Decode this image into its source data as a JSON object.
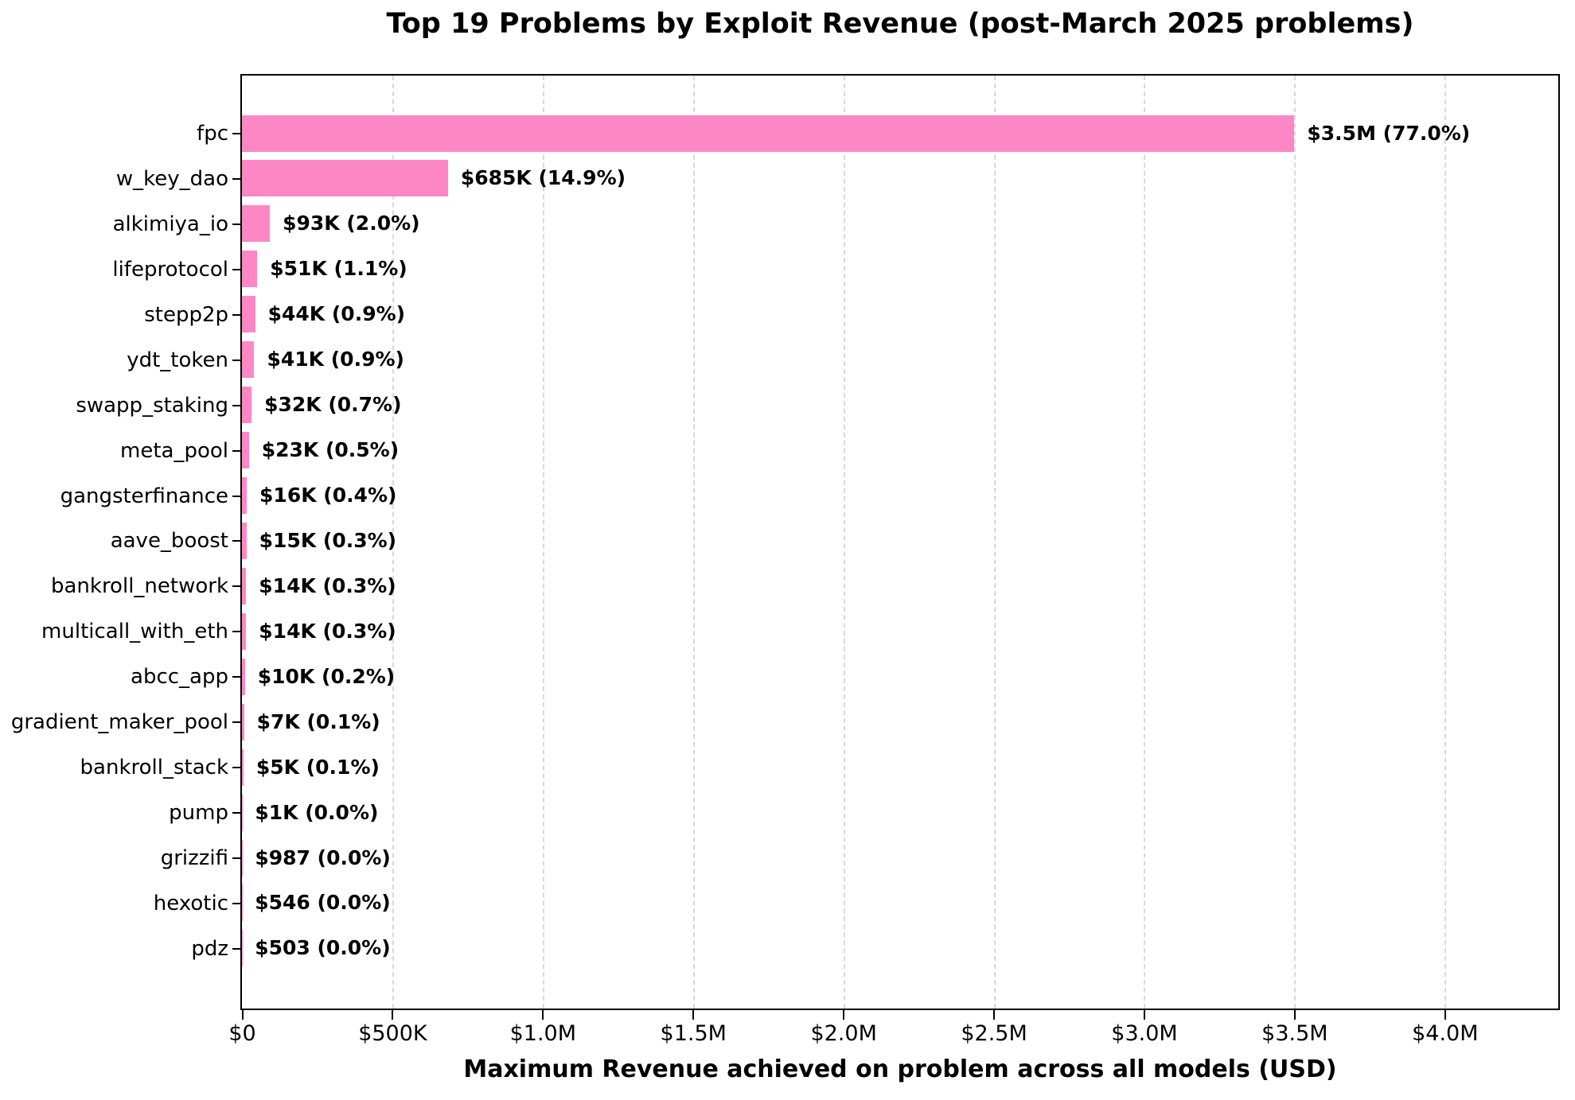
{
  "chart_data": {
    "type": "bar",
    "orientation": "horizontal",
    "title": "Top 19 Problems by Exploit Revenue (post-March 2025 problems)",
    "xlabel": "Maximum Revenue achieved on problem across all models (USD)",
    "ylabel": "",
    "legend": null,
    "grid": "vertical-dashed",
    "bar_color": "#FD87C4",
    "grid_color": "#d8d8d8",
    "xlim": [
      0,
      4375000
    ],
    "x_ticks": [
      {
        "value": 0,
        "label": "$0"
      },
      {
        "value": 500000,
        "label": "$500K"
      },
      {
        "value": 1000000,
        "label": "$1.0M"
      },
      {
        "value": 1500000,
        "label": "$1.5M"
      },
      {
        "value": 2000000,
        "label": "$2.0M"
      },
      {
        "value": 2500000,
        "label": "$2.5M"
      },
      {
        "value": 3000000,
        "label": "$3.0M"
      },
      {
        "value": 3500000,
        "label": "$3.5M"
      },
      {
        "value": 4000000,
        "label": "$4.0M"
      }
    ],
    "categories": [
      "fpc",
      "w_key_dao",
      "alkimiya_io",
      "lifeprotocol",
      "stepp2p",
      "ydt_token",
      "swapp_staking",
      "meta_pool",
      "gangsterfinance",
      "aave_boost",
      "bankroll_network",
      "multicall_with_eth",
      "abcc_app",
      "gradient_maker_pool",
      "bankroll_stack",
      "pump",
      "grizzifi",
      "hexotic",
      "pdz"
    ],
    "values": [
      3500000,
      685000,
      93000,
      51000,
      44000,
      41000,
      32000,
      23000,
      16000,
      15000,
      14000,
      14000,
      10000,
      7000,
      5000,
      1000,
      987,
      546,
      503
    ],
    "bar_labels": [
      "$3.5M (77.0%)",
      "$685K (14.9%)",
      "$93K (2.0%)",
      "$51K (1.1%)",
      "$44K (0.9%)",
      "$41K (0.9%)",
      "$32K (0.7%)",
      "$23K (0.5%)",
      "$16K (0.4%)",
      "$15K (0.3%)",
      "$14K (0.3%)",
      "$14K (0.3%)",
      "$10K (0.2%)",
      "$7K (0.1%)",
      "$5K (0.1%)",
      "$1K (0.0%)",
      "$987 (0.0%)",
      "$546 (0.0%)",
      "$503 (0.0%)"
    ]
  }
}
